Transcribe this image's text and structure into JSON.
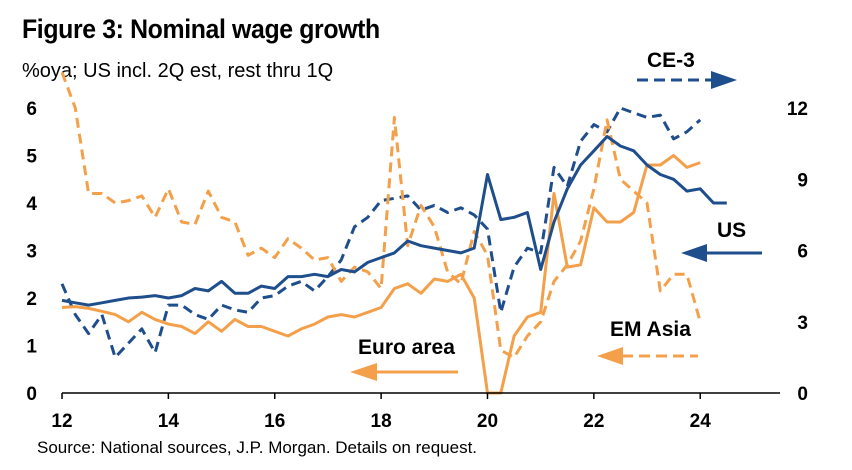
{
  "header": {
    "title": "Figure 3: Nominal wage growth",
    "subtitle": "%oya; US incl. 2Q est, rest thru 1Q"
  },
  "footer": {
    "source": "Source: National sources, J.P. Morgan. Details on request."
  },
  "colors": {
    "navy": "#1f4e8c",
    "orange": "#f4a04a",
    "axis": "#000000"
  },
  "chart_data": {
    "type": "line",
    "title": "Figure 3: Nominal wage growth",
    "subtitle": "%oya; US incl. 2Q est, rest thru 1Q",
    "x_ticks": [
      "12",
      "14",
      "16",
      "18",
      "20",
      "22",
      "24"
    ],
    "xlim": [
      2012,
      2025.5
    ],
    "y_left_ticks": [
      "0",
      "1",
      "2",
      "3",
      "4",
      "5",
      "6"
    ],
    "ylim_left": [
      0,
      6
    ],
    "y_right_ticks": [
      "0",
      "3",
      "6",
      "9",
      "12"
    ],
    "ylim_right": [
      0,
      12
    ],
    "grid": false,
    "annotations": {
      "ce3": "CE-3",
      "us": "US",
      "euro": "Euro area",
      "emasia": "EM Asia"
    },
    "series": [
      {
        "name": "US",
        "axis": "left",
        "style": "solid",
        "color": "#1f4e8c",
        "x": [
          2012.0,
          2012.25,
          2012.5,
          2012.75,
          2013.0,
          2013.25,
          2013.5,
          2013.75,
          2014.0,
          2014.25,
          2014.5,
          2014.75,
          2015.0,
          2015.25,
          2015.5,
          2015.75,
          2016.0,
          2016.25,
          2016.5,
          2016.75,
          2017.0,
          2017.25,
          2017.5,
          2017.75,
          2018.0,
          2018.25,
          2018.5,
          2018.75,
          2019.0,
          2019.25,
          2019.5,
          2019.75,
          2020.0,
          2020.25,
          2020.5,
          2020.75,
          2021.0,
          2021.25,
          2021.5,
          2021.75,
          2022.0,
          2022.25,
          2022.5,
          2022.75,
          2023.0,
          2023.25,
          2023.5,
          2023.75,
          2024.0,
          2024.25,
          2024.5
        ],
        "values": [
          1.95,
          1.9,
          1.85,
          1.9,
          1.95,
          2.0,
          2.02,
          2.05,
          2.0,
          2.05,
          2.2,
          2.15,
          2.35,
          2.1,
          2.1,
          2.25,
          2.2,
          2.45,
          2.45,
          2.5,
          2.45,
          2.6,
          2.55,
          2.75,
          2.85,
          2.95,
          3.2,
          3.1,
          3.05,
          3.0,
          2.95,
          3.05,
          4.6,
          3.65,
          3.7,
          3.8,
          2.6,
          3.6,
          4.3,
          4.8,
          5.1,
          5.4,
          5.2,
          5.1,
          4.8,
          4.6,
          4.5,
          4.25,
          4.3,
          4.0,
          4.0
        ]
      },
      {
        "name": "Euro area",
        "axis": "left",
        "style": "solid",
        "color": "#f4a04a",
        "x": [
          2012.0,
          2012.25,
          2012.5,
          2012.75,
          2013.0,
          2013.25,
          2013.5,
          2013.75,
          2014.0,
          2014.25,
          2014.5,
          2014.75,
          2015.0,
          2015.25,
          2015.5,
          2015.75,
          2016.0,
          2016.25,
          2016.5,
          2016.75,
          2017.0,
          2017.25,
          2017.5,
          2017.75,
          2018.0,
          2018.25,
          2018.5,
          2018.75,
          2019.0,
          2019.25,
          2019.5,
          2019.75,
          2020.0,
          2020.25,
          2020.5,
          2020.75,
          2021.0,
          2021.25,
          2021.5,
          2021.75,
          2022.0,
          2022.25,
          2022.5,
          2022.75,
          2023.0,
          2023.25,
          2023.5,
          2023.75,
          2024.0
        ],
        "values": [
          1.8,
          1.82,
          1.78,
          1.72,
          1.65,
          1.5,
          1.7,
          1.55,
          1.45,
          1.4,
          1.25,
          1.5,
          1.3,
          1.55,
          1.4,
          1.4,
          1.3,
          1.2,
          1.35,
          1.45,
          1.6,
          1.65,
          1.6,
          1.7,
          1.8,
          2.2,
          2.3,
          2.1,
          2.4,
          2.35,
          2.5,
          2.0,
          0.0,
          0.0,
          1.2,
          1.6,
          1.7,
          4.2,
          2.65,
          2.7,
          3.9,
          3.6,
          3.6,
          3.8,
          4.8,
          4.8,
          5.0,
          4.75,
          4.85
        ]
      },
      {
        "name": "CE-3",
        "axis": "right",
        "style": "dashed",
        "color": "#1f4e8c",
        "x": [
          2012.0,
          2012.25,
          2012.5,
          2012.75,
          2013.0,
          2013.25,
          2013.5,
          2013.75,
          2014.0,
          2014.25,
          2014.5,
          2014.75,
          2015.0,
          2015.25,
          2015.5,
          2015.75,
          2016.0,
          2016.25,
          2016.5,
          2016.75,
          2017.0,
          2017.25,
          2017.5,
          2017.75,
          2018.0,
          2018.25,
          2018.5,
          2018.75,
          2019.0,
          2019.25,
          2019.5,
          2019.75,
          2020.0,
          2020.25,
          2020.5,
          2020.75,
          2021.0,
          2021.25,
          2021.5,
          2021.75,
          2022.0,
          2022.25,
          2022.5,
          2022.75,
          2023.0,
          2023.25,
          2023.5,
          2023.75,
          2024.0
        ],
        "values": [
          4.6,
          3.3,
          2.5,
          3.3,
          1.5,
          2.1,
          2.7,
          1.7,
          3.7,
          3.7,
          3.3,
          3.1,
          3.7,
          3.5,
          3.4,
          4.0,
          4.1,
          4.5,
          4.7,
          4.3,
          4.9,
          5.6,
          7.0,
          7.4,
          8.1,
          8.2,
          8.3,
          7.7,
          7.9,
          7.6,
          7.8,
          7.5,
          6.9,
          3.4,
          5.3,
          6.1,
          5.9,
          9.5,
          8.7,
          10.6,
          11.3,
          11.0,
          12.0,
          11.8,
          11.6,
          11.7,
          10.7,
          11.0,
          11.5
        ]
      },
      {
        "name": "EM Asia",
        "axis": "right",
        "style": "dashed",
        "color": "#f4a04a",
        "x": [
          2012.0,
          2012.25,
          2012.5,
          2012.75,
          2013.0,
          2013.25,
          2013.5,
          2013.75,
          2014.0,
          2014.25,
          2014.5,
          2014.75,
          2015.0,
          2015.25,
          2015.5,
          2015.75,
          2016.0,
          2016.25,
          2016.5,
          2016.75,
          2017.0,
          2017.25,
          2017.5,
          2017.75,
          2018.0,
          2018.25,
          2018.5,
          2018.75,
          2019.0,
          2019.25,
          2019.5,
          2019.75,
          2020.0,
          2020.25,
          2020.5,
          2020.75,
          2021.0,
          2021.25,
          2021.5,
          2021.75,
          2022.0,
          2022.25,
          2022.5,
          2022.75,
          2023.0,
          2023.25,
          2023.5,
          2023.75,
          2024.0
        ],
        "values": [
          13.5,
          12.0,
          8.4,
          8.4,
          8.0,
          8.1,
          8.3,
          7.4,
          8.6,
          7.2,
          7.1,
          8.5,
          7.4,
          7.2,
          5.8,
          6.1,
          5.7,
          6.5,
          6.1,
          5.6,
          5.7,
          4.7,
          5.3,
          5.1,
          4.4,
          11.6,
          6.2,
          7.9,
          7.0,
          5.1,
          4.6,
          6.8,
          5.8,
          1.8,
          1.5,
          2.4,
          3.0,
          4.7,
          5.4,
          6.4,
          8.6,
          11.5,
          9.0,
          8.5,
          8.0,
          4.3,
          5.0,
          5.0,
          3.0
        ]
      }
    ]
  }
}
